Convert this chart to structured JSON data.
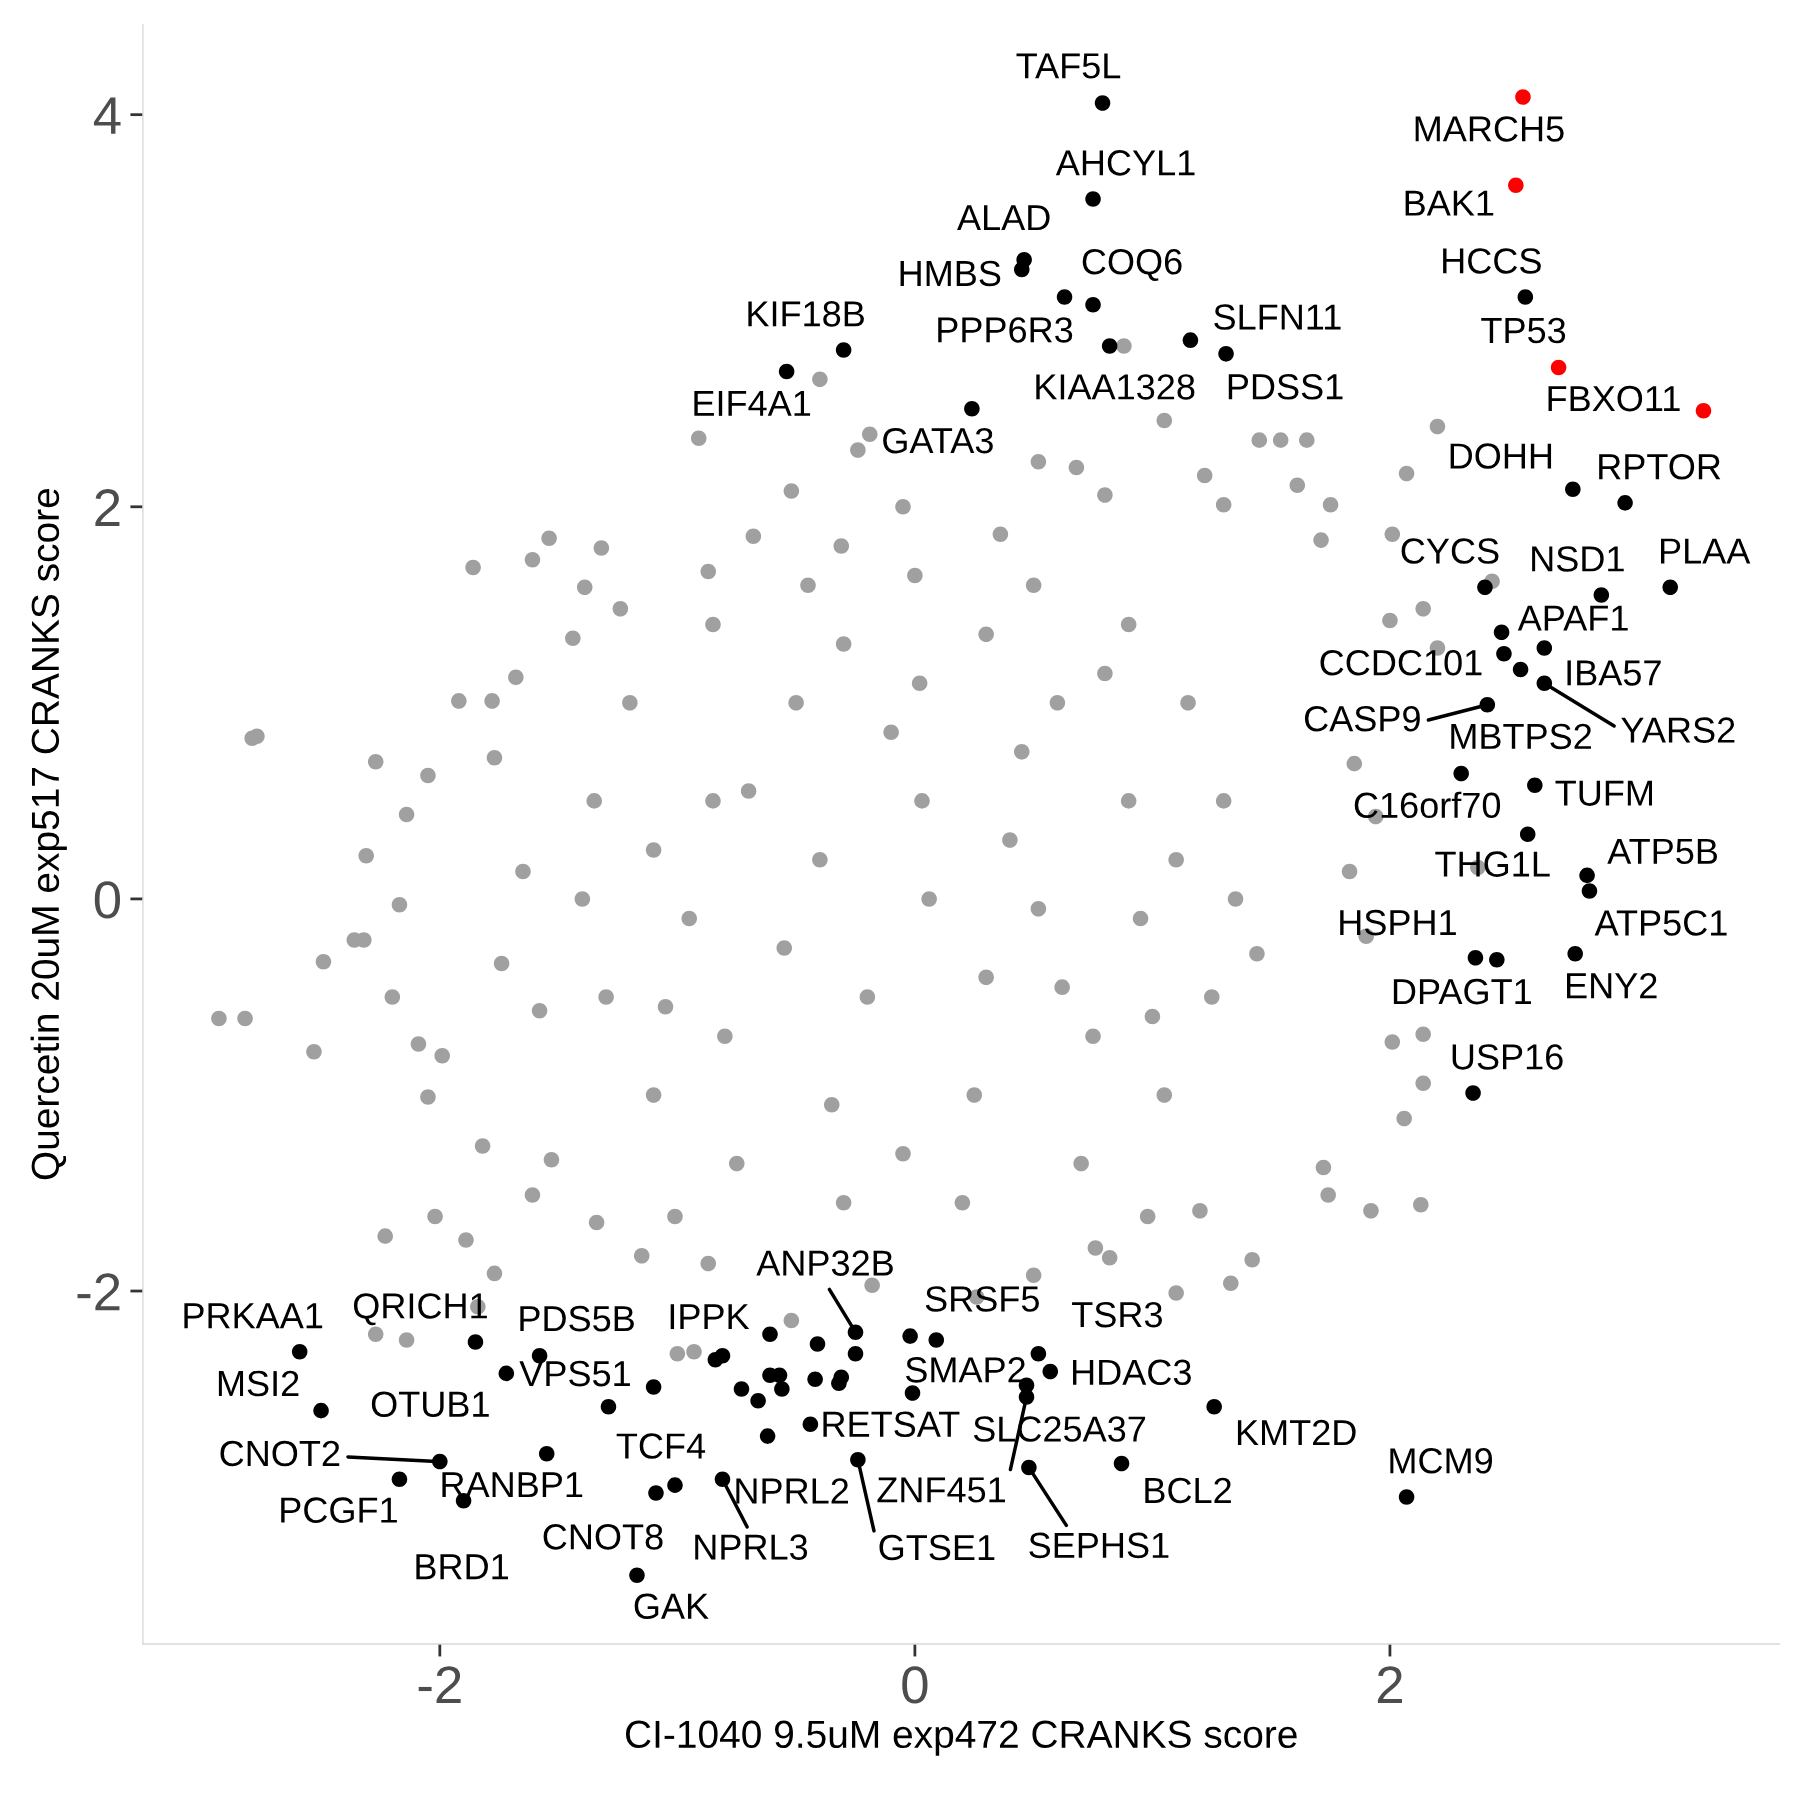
{
  "chart_data": {
    "type": "scatter",
    "xlabel": "CI-1040 9.5uM exp472 CRANKS score",
    "ylabel": "Quercetin 20uM exp517 CRANKS score",
    "xlim": [
      -3.25,
      3.64
    ],
    "ylim": [
      -3.8,
      4.46
    ],
    "xticks": [
      -2,
      0,
      2
    ],
    "yticks": [
      -2,
      0,
      2,
      4
    ],
    "marker": "circle",
    "series": [
      {
        "color": "#a0a0a0",
        "x": [
          -2.93,
          -2.82,
          -2.79,
          -2.77,
          -2.53,
          -2.49,
          -2.36,
          -2.32,
          -2.31,
          -2.27,
          -2.2,
          -2.17,
          -2.14,
          -2.05,
          -2.09,
          -2.05,
          -1.99,
          -2.23,
          -2.02,
          -1.89,
          -1.86,
          -1.61,
          -1.54,
          -1.78,
          -1.92,
          -1.77,
          -2.27,
          -2.14,
          -1.84,
          -1.39,
          -1.32,
          -1.15,
          -0.91,
          -0.4,
          -0.24,
          -0.19,
          -0.68,
          -0.52,
          0.52,
          0.68,
          1.05,
          0.88,
          1.45,
          1.54,
          1.65,
          2.2,
          2.07,
          2.01,
          2.43,
          2.14,
          2.2,
          2.14,
          2.01,
          2.14,
          2.06,
          2.13,
          1.92,
          1.72,
          1.74,
          1.42,
          1.1,
          1.2,
          0.76,
          1.33,
          1.44,
          1.71,
          2.0,
          1.85,
          1.83,
          1.9,
          2.37,
          1.94,
          1.75,
          1.61,
          1.3,
          1.22,
          0.8,
          -0.05,
          -0.31,
          0.36,
          -0.87,
          -1.24,
          -1.44,
          -1.68,
          -1.77,
          -1.65,
          -1.74,
          -1.58,
          -1.82,
          -1.53,
          -1.61,
          -1.34,
          -1.01,
          -0.87,
          -0.52,
          -0.18,
          0.26,
          0.5,
          0.82,
          0.98,
          -1.0,
          -0.93,
          0.0,
          0.5,
          0.9,
          1.15,
          1.3,
          1.35,
          1.25,
          1.05,
          0.7,
          0.2,
          -0.3,
          -0.75,
          -1.1,
          -1.3,
          -1.4,
          -1.35,
          -1.2,
          -0.85,
          -0.45,
          0.02,
          0.6,
          0.9,
          0.95,
          0.75,
          0.25,
          -0.35,
          -0.8,
          -0.95,
          -0.85,
          -0.5,
          0.03,
          0.4,
          0.3,
          -0.2,
          -0.4,
          0.06,
          0.52,
          -0.1,
          0.45,
          -0.55,
          0.62,
          -0.7,
          0.3,
          1.1,
          1.0,
          -0.05,
          -1.1,
          -1.05,
          -0.3,
          0.8
        ],
        "values": [
          -0.61,
          -0.61,
          0.82,
          0.83,
          -0.78,
          -0.32,
          -0.21,
          -0.21,
          0.22,
          0.7,
          -0.5,
          -0.03,
          0.43,
          0.63,
          -0.74,
          -1.01,
          -0.8,
          -1.72,
          -1.62,
          -1.74,
          1.69,
          1.73,
          1.84,
          1.01,
          1.01,
          -1.91,
          -2.22,
          -2.25,
          -2.08,
          1.59,
          1.79,
          -1.82,
          2.35,
          2.65,
          2.29,
          2.37,
          1.85,
          2.08,
          2.23,
          2.2,
          2.44,
          2.82,
          2.34,
          2.34,
          2.34,
          2.41,
          2.17,
          1.86,
          1.62,
          1.48,
          1.28,
          -0.69,
          -0.73,
          -0.94,
          -1.12,
          -1.56,
          -1.59,
          -1.37,
          -1.51,
          -1.84,
          -2.01,
          -1.59,
          -1.78,
          -1.96,
          -0.28,
          1.83,
          1.42,
          0.69,
          0.14,
          -0.19,
          0.16,
          0.42,
          2.01,
          2.11,
          2.01,
          2.16,
          2.06,
          2.0,
          1.8,
          1.86,
          1.67,
          1.48,
          1.33,
          1.13,
          0.72,
          0.14,
          -0.33,
          -0.57,
          -1.26,
          -1.33,
          -1.51,
          -1.65,
          -1.62,
          -1.86,
          -2.15,
          -1.97,
          -2.03,
          -1.92,
          -1.83,
          -1.62,
          -2.32,
          -2.31,
          1.65,
          1.6,
          1.4,
          1.0,
          0.5,
          0.0,
          -0.5,
          -1.0,
          -1.35,
          -1.55,
          -1.55,
          -1.35,
          -1.0,
          -0.5,
          0.0,
          0.5,
          1.0,
          1.4,
          1.6,
          1.1,
          1.0,
          0.5,
          -0.1,
          -0.7,
          -1.0,
          -1.05,
          -0.7,
          -0.1,
          0.5,
          1.0,
          0.5,
          0.3,
          -0.4,
          -0.5,
          0.2,
          0.0,
          -0.05,
          0.85,
          0.75,
          -0.25,
          -0.45,
          0.55,
          1.35,
          0.2,
          -0.6,
          -1.3,
          0.25,
          -0.55,
          1.3,
          1.15
        ]
      },
      {
        "color": "#000000",
        "x": [
          0.79,
          0.75,
          0.46,
          0.45,
          0.75,
          0.63,
          0.82,
          1.16,
          1.31,
          -0.3,
          -0.54,
          0.24,
          2.57,
          2.77,
          2.99,
          2.4,
          2.89,
          3.18,
          2.47,
          2.65,
          2.48,
          2.55,
          2.65,
          2.41,
          2.3,
          2.61,
          2.58,
          2.83,
          2.84,
          2.36,
          2.45,
          2.78,
          2.35,
          -2.59,
          -1.85,
          -1.58,
          -1.72,
          -1.29,
          -2.5,
          -2.0,
          -2.17,
          -1.55,
          -1.9,
          -1.01,
          -1.09,
          -1.17,
          -0.81,
          -0.25,
          0.09,
          0.52,
          0.57,
          -0.01,
          0.47,
          0.47,
          0.48,
          -0.44,
          -0.62,
          -0.81,
          -0.24,
          1.26,
          0.87,
          2.07,
          -0.84,
          -1.1,
          -0.61,
          -0.41,
          -0.25,
          -0.02,
          -0.61,
          -0.57,
          -0.42,
          -0.32,
          -0.31,
          -0.73,
          -0.56,
          -0.66
        ],
        "values": [
          4.06,
          3.57,
          3.26,
          3.21,
          3.03,
          3.07,
          2.82,
          2.85,
          2.78,
          2.8,
          2.69,
          2.5,
          3.07,
          2.09,
          2.02,
          1.59,
          1.55,
          1.59,
          1.36,
          1.28,
          1.25,
          1.17,
          1.1,
          0.99,
          0.64,
          0.58,
          0.33,
          0.12,
          0.04,
          -0.3,
          -0.31,
          -0.28,
          -0.99,
          -2.31,
          -2.26,
          -2.33,
          -2.42,
          -2.59,
          -2.61,
          -2.87,
          -2.96,
          -2.83,
          -3.07,
          -2.99,
          -3.03,
          -3.45,
          -2.33,
          -2.21,
          -2.25,
          -2.32,
          -2.41,
          -2.52,
          -2.48,
          -2.54,
          -2.9,
          -2.68,
          -2.74,
          -2.96,
          -2.86,
          -2.59,
          -2.88,
          -3.05,
          -2.35,
          -2.49,
          -2.22,
          -2.27,
          -2.32,
          -2.23,
          -2.43,
          -2.43,
          -2.45,
          -2.47,
          -2.44,
          -2.5,
          -2.5,
          -2.56
        ]
      },
      {
        "color": "#ff0000",
        "x": [
          2.56,
          2.53,
          2.71,
          3.32
        ],
        "values": [
          4.09,
          3.64,
          2.71,
          2.49
        ]
      }
    ],
    "annotations": [
      {
        "text": "TAF5L",
        "x": 0.79,
        "y": 4.06
      },
      {
        "text": "AHCYL1",
        "x": 0.75,
        "y": 3.57
      },
      {
        "text": "ALAD",
        "x": 0.46,
        "y": 3.26
      },
      {
        "text": "HMBS",
        "x": 0.45,
        "y": 3.21
      },
      {
        "text": "COQ6",
        "x": 0.75,
        "y": 3.03
      },
      {
        "text": "PPP6R3",
        "x": 0.63,
        "y": 3.07
      },
      {
        "text": "KIAA1328",
        "x": 0.82,
        "y": 2.82
      },
      {
        "text": "SLFN11",
        "x": 1.16,
        "y": 2.85
      },
      {
        "text": "PDSS1",
        "x": 1.31,
        "y": 2.78
      },
      {
        "text": "KIF18B",
        "x": -0.3,
        "y": 2.8
      },
      {
        "text": "EIF4A1",
        "x": -0.54,
        "y": 2.69
      },
      {
        "text": "GATA3",
        "x": 0.24,
        "y": 2.5
      },
      {
        "text": "MARCH5",
        "x": 2.56,
        "y": 4.09
      },
      {
        "text": "BAK1",
        "x": 2.53,
        "y": 3.64
      },
      {
        "text": "HCCS",
        "x": 2.57,
        "y": 3.07
      },
      {
        "text": "TP53",
        "x": 2.71,
        "y": 2.71
      },
      {
        "text": "FBXO11",
        "x": 3.32,
        "y": 2.49
      },
      {
        "text": "DOHH",
        "x": 2.77,
        "y": 2.09
      },
      {
        "text": "RPTOR",
        "x": 2.99,
        "y": 2.02
      },
      {
        "text": "CYCS",
        "x": 2.4,
        "y": 1.59
      },
      {
        "text": "NSD1",
        "x": 2.89,
        "y": 1.55
      },
      {
        "text": "PLAA",
        "x": 3.18,
        "y": 1.59
      },
      {
        "text": "APAF1",
        "x": 2.47,
        "y": 1.36
      },
      {
        "text": "IBA57",
        "x": 2.65,
        "y": 1.28
      },
      {
        "text": "CCDC101",
        "x": 2.48,
        "y": 1.25
      },
      {
        "text": "MBTPS2",
        "x": 2.55,
        "y": 1.17
      },
      {
        "text": "YARS2",
        "x": 2.65,
        "y": 1.1
      },
      {
        "text": "CASP9",
        "x": 2.41,
        "y": 0.99
      },
      {
        "text": "C16orf70",
        "x": 2.3,
        "y": 0.64
      },
      {
        "text": "TUFM",
        "x": 2.61,
        "y": 0.58
      },
      {
        "text": "THG1L",
        "x": 2.58,
        "y": 0.33
      },
      {
        "text": "ATP5B",
        "x": 2.83,
        "y": 0.12
      },
      {
        "text": "ATP5C1",
        "x": 2.84,
        "y": 0.04
      },
      {
        "text": "HSPH1",
        "x": 2.36,
        "y": -0.3
      },
      {
        "text": "DPAGT1",
        "x": 2.45,
        "y": -0.31
      },
      {
        "text": "ENY2",
        "x": 2.78,
        "y": -0.28
      },
      {
        "text": "USP16",
        "x": 2.35,
        "y": -0.99
      },
      {
        "text": "PRKAA1",
        "x": -2.59,
        "y": -2.31
      },
      {
        "text": "QRICH1",
        "x": -1.85,
        "y": -2.26
      },
      {
        "text": "PDS5B",
        "x": -1.58,
        "y": -2.33
      },
      {
        "text": "OTUB1",
        "x": -1.72,
        "y": -2.42
      },
      {
        "text": "VPS51",
        "x": -1.29,
        "y": -2.59
      },
      {
        "text": "MSI2",
        "x": -2.5,
        "y": -2.61
      },
      {
        "text": "CNOT2",
        "x": -2.0,
        "y": -2.87
      },
      {
        "text": "PCGF1",
        "x": -2.17,
        "y": -2.96
      },
      {
        "text": "RANBP1",
        "x": -1.55,
        "y": -2.83
      },
      {
        "text": "BRD1",
        "x": -1.9,
        "y": -3.07
      },
      {
        "text": "TCF4",
        "x": -1.01,
        "y": -2.99
      },
      {
        "text": "CNOT8",
        "x": -1.09,
        "y": -3.03
      },
      {
        "text": "GAK",
        "x": -1.17,
        "y": -3.45
      },
      {
        "text": "IPPK",
        "x": -0.81,
        "y": -2.33
      },
      {
        "text": "ANP32B",
        "x": -0.25,
        "y": -2.21
      },
      {
        "text": "SRSF5",
        "x": 0.09,
        "y": -2.25
      },
      {
        "text": "TSR3",
        "x": 0.52,
        "y": -2.32
      },
      {
        "text": "HDAC3",
        "x": 0.57,
        "y": -2.41
      },
      {
        "text": "SMAP2",
        "x": -0.01,
        "y": -2.52
      },
      {
        "text": "SLC25A37",
        "x": 0.47,
        "y": -2.48
      },
      {
        "text": "ZNF451",
        "x": 0.47,
        "y": -2.54
      },
      {
        "text": "SEPHS1",
        "x": 0.48,
        "y": -2.9
      },
      {
        "text": "RETSAT",
        "x": -0.44,
        "y": -2.68
      },
      {
        "text": "NPRL2",
        "x": -0.62,
        "y": -2.74
      },
      {
        "text": "NPRL3",
        "x": -0.81,
        "y": -2.96
      },
      {
        "text": "GTSE1",
        "x": -0.24,
        "y": -2.86
      },
      {
        "text": "KMT2D",
        "x": 1.26,
        "y": -2.59
      },
      {
        "text": "BCL2",
        "x": 0.87,
        "y": -2.88
      },
      {
        "text": "MCM9",
        "x": 2.07,
        "y": -3.05
      }
    ]
  }
}
